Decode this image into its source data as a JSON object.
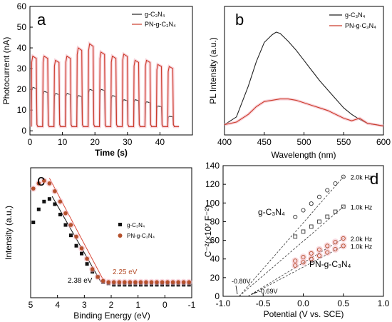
{
  "chart_data": [
    {
      "panel": "a",
      "type": "line",
      "xlabel": "Time (s)",
      "ylabel": "Photocurrent (nA)",
      "xlim": [
        0,
        50
      ],
      "ylim": [
        -2,
        60
      ],
      "xticks": [
        0,
        10,
        20,
        30,
        40
      ],
      "yticks": [
        0,
        10,
        20,
        30,
        40,
        50,
        60
      ],
      "legend_position": "top-right",
      "series": [
        {
          "name": "g-C₃N₄",
          "color": "#222222",
          "period_s": 3.5,
          "on_values": [
            21,
            19,
            18,
            18,
            17,
            20,
            20,
            17,
            15,
            15,
            14,
            12,
            7
          ],
          "off_value": 2
        },
        {
          "name": "PN-g-C₃N₄",
          "color": "#cc3b2a",
          "period_s": 3.5,
          "on_values": [
            36,
            36,
            34,
            36,
            40,
            42,
            38,
            36,
            37,
            34,
            34,
            32,
            31
          ],
          "off_value": 2
        }
      ]
    },
    {
      "panel": "b",
      "type": "line",
      "xlabel": "Wavelength (nm)",
      "ylabel": "PL Intensity (a.u.)",
      "xlim": [
        400,
        600
      ],
      "xticks": [
        400,
        450,
        500,
        550,
        600
      ],
      "legend_position": "top-right",
      "series": [
        {
          "name": "g-C₃N₄",
          "color": "#222222",
          "x": [
            400,
            415,
            430,
            440,
            450,
            460,
            465,
            470,
            480,
            490,
            500,
            510,
            520,
            530,
            540,
            550,
            560,
            570,
            580,
            590,
            600
          ],
          "values": [
            0.08,
            0.14,
            0.38,
            0.57,
            0.72,
            0.78,
            0.8,
            0.79,
            0.73,
            0.66,
            0.58,
            0.5,
            0.42,
            0.35,
            0.28,
            0.21,
            0.16,
            0.12,
            0.09,
            0.08,
            0.07
          ]
        },
        {
          "name": "PN-g-C₃N₄",
          "color": "#cc3b2a",
          "x": [
            400,
            415,
            430,
            440,
            450,
            460,
            470,
            480,
            490,
            500,
            510,
            520,
            530,
            540,
            550,
            560,
            570,
            580,
            590,
            600
          ],
          "values": [
            0.08,
            0.1,
            0.16,
            0.22,
            0.26,
            0.27,
            0.28,
            0.28,
            0.27,
            0.25,
            0.23,
            0.21,
            0.19,
            0.16,
            0.13,
            0.11,
            0.13,
            0.09,
            0.08,
            0.07
          ]
        }
      ]
    },
    {
      "panel": "c",
      "type": "scatter",
      "xlabel": "Binding Energy (eV)",
      "ylabel": "Intensity (a.u.)",
      "xlim": [
        5,
        -1
      ],
      "xticks": [
        5,
        4,
        3,
        2,
        1,
        0,
        -1
      ],
      "legend_position": "right",
      "annotations": [
        "2.38 eV",
        "2.25 eV"
      ],
      "fit_lines": [
        {
          "series": "g-C₃N₄",
          "x": [
            4.2,
            2.38
          ],
          "values": [
            0.88,
            0.22
          ]
        },
        {
          "series": "PN-g-C₃N₄",
          "x": [
            4.3,
            2.25
          ],
          "values": [
            1.02,
            0.22
          ]
        }
      ],
      "series": [
        {
          "name": "g-C₃N₄",
          "color": "#111111",
          "x": [
            4.9,
            4.7,
            4.5,
            4.3,
            4.1,
            3.9,
            3.7,
            3.5,
            3.3,
            3.1,
            2.9,
            2.7,
            2.5,
            2.3,
            2.1,
            1.9,
            1.7,
            1.5,
            1.3,
            1.1,
            0.9,
            0.7,
            0.5,
            0.3,
            0.1,
            -0.1,
            -0.3,
            -0.5,
            -0.7,
            -0.9
          ],
          "values": [
            0.68,
            0.78,
            0.84,
            0.86,
            0.82,
            0.74,
            0.66,
            0.58,
            0.5,
            0.44,
            0.36,
            0.3,
            0.26,
            0.22,
            0.21,
            0.2,
            0.2,
            0.2,
            0.2,
            0.2,
            0.2,
            0.2,
            0.2,
            0.2,
            0.2,
            0.2,
            0.2,
            0.2,
            0.2,
            0.2
          ]
        },
        {
          "name": "PN-g-C₃N₄",
          "color": "#b5502c",
          "x": [
            4.9,
            4.7,
            4.5,
            4.3,
            4.1,
            3.9,
            3.7,
            3.5,
            3.3,
            3.1,
            2.9,
            2.7,
            2.5,
            2.3,
            2.1,
            1.9,
            1.7,
            1.5,
            1.3,
            1.1,
            0.9,
            0.7,
            0.5,
            0.3,
            0.1,
            -0.1,
            -0.3,
            -0.5,
            -0.7,
            -0.9
          ],
          "values": [
            0.94,
            0.98,
            1.0,
            0.98,
            0.92,
            0.84,
            0.75,
            0.66,
            0.57,
            0.48,
            0.4,
            0.32,
            0.26,
            0.23,
            0.22,
            0.22,
            0.22,
            0.22,
            0.22,
            0.22,
            0.22,
            0.22,
            0.22,
            0.22,
            0.22,
            0.22,
            0.22,
            0.22,
            0.22,
            0.22
          ]
        }
      ]
    },
    {
      "panel": "d",
      "type": "scatter",
      "xlabel": "Potential (V vs. SCE)",
      "ylabel": "C⁻²(×10⁷ F⁻²)",
      "xlim": [
        -1.0,
        1.0
      ],
      "ylim": [
        0,
        140
      ],
      "xticks": [
        -1.0,
        -0.5,
        0.0,
        0.5,
        1.0
      ],
      "yticks": [
        0,
        20,
        40,
        60,
        80,
        100,
        120,
        140
      ],
      "annotations": [
        "g-C₃N₄",
        "PN-g-C₃N₄",
        "-0.80V",
        "-0.69V"
      ],
      "intercepts_V": [
        -0.8,
        -0.69
      ],
      "series": [
        {
          "name": "2.0k Hz",
          "sample": "g-C₃N₄",
          "color": "#333333",
          "x_start": -0.1,
          "x_end": 0.5,
          "y_start": 85,
          "y_end": 128,
          "intercept": -0.8
        },
        {
          "name": "1.0k Hz",
          "sample": "g-C₃N₄",
          "color": "#333333",
          "x_start": -0.1,
          "x_end": 0.5,
          "y_start": 64,
          "y_end": 96,
          "intercept": -0.8
        },
        {
          "name": "2.0k Hz",
          "sample": "PN-g-C₃N₄",
          "color": "#b5502c",
          "x_start": -0.1,
          "x_end": 0.5,
          "y_start": 38,
          "y_end": 62,
          "intercept": -0.69
        },
        {
          "name": "1.0k Hz",
          "sample": "PN-g-C₃N₄",
          "color": "#b5502c",
          "x_start": -0.1,
          "x_end": 0.5,
          "y_start": 33,
          "y_end": 54,
          "intercept": -0.69
        }
      ]
    }
  ],
  "panel_labels": [
    "a",
    "b",
    "c",
    "d"
  ]
}
